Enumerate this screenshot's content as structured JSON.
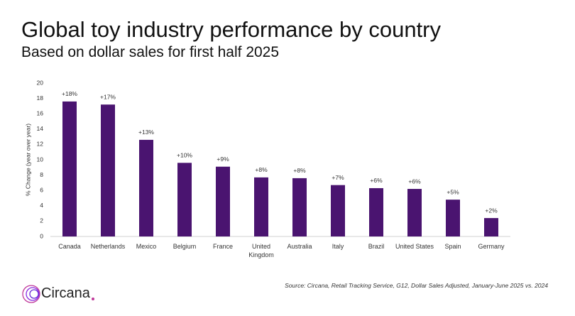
{
  "chart_data": {
    "type": "bar",
    "title": "Global toy industry performance by country",
    "subtitle": "Based on dollar sales for first half 2025",
    "y_label": "% Change (year over year)",
    "source": "Source: Circana, Retail Tracking Service, G12, Dollar Sales Adjusted, January-June 2025 vs. 2024",
    "categories": [
      "Canada",
      "Netherlands",
      "Mexico",
      "Belgium",
      "France",
      "United Kingdom",
      "Australia",
      "Italy",
      "Brazil",
      "United States",
      "Spain",
      "Germany"
    ],
    "values": [
      17.6,
      17.2,
      12.6,
      9.6,
      9.1,
      7.7,
      7.6,
      6.7,
      6.3,
      6.2,
      4.8,
      2.4
    ],
    "value_labels": [
      "+18%",
      "+17%",
      "+13%",
      "+10%",
      "+9%",
      "+8%",
      "+8%",
      "+7%",
      "+6%",
      "+6%",
      "+5%",
      "+2%"
    ],
    "color": "#4a1470",
    "ylim": [
      0,
      20
    ],
    "yticks": [
      0,
      2,
      4,
      6,
      8,
      10,
      12,
      14,
      16,
      18,
      20
    ],
    "grid": false
  },
  "logo": "Circana"
}
